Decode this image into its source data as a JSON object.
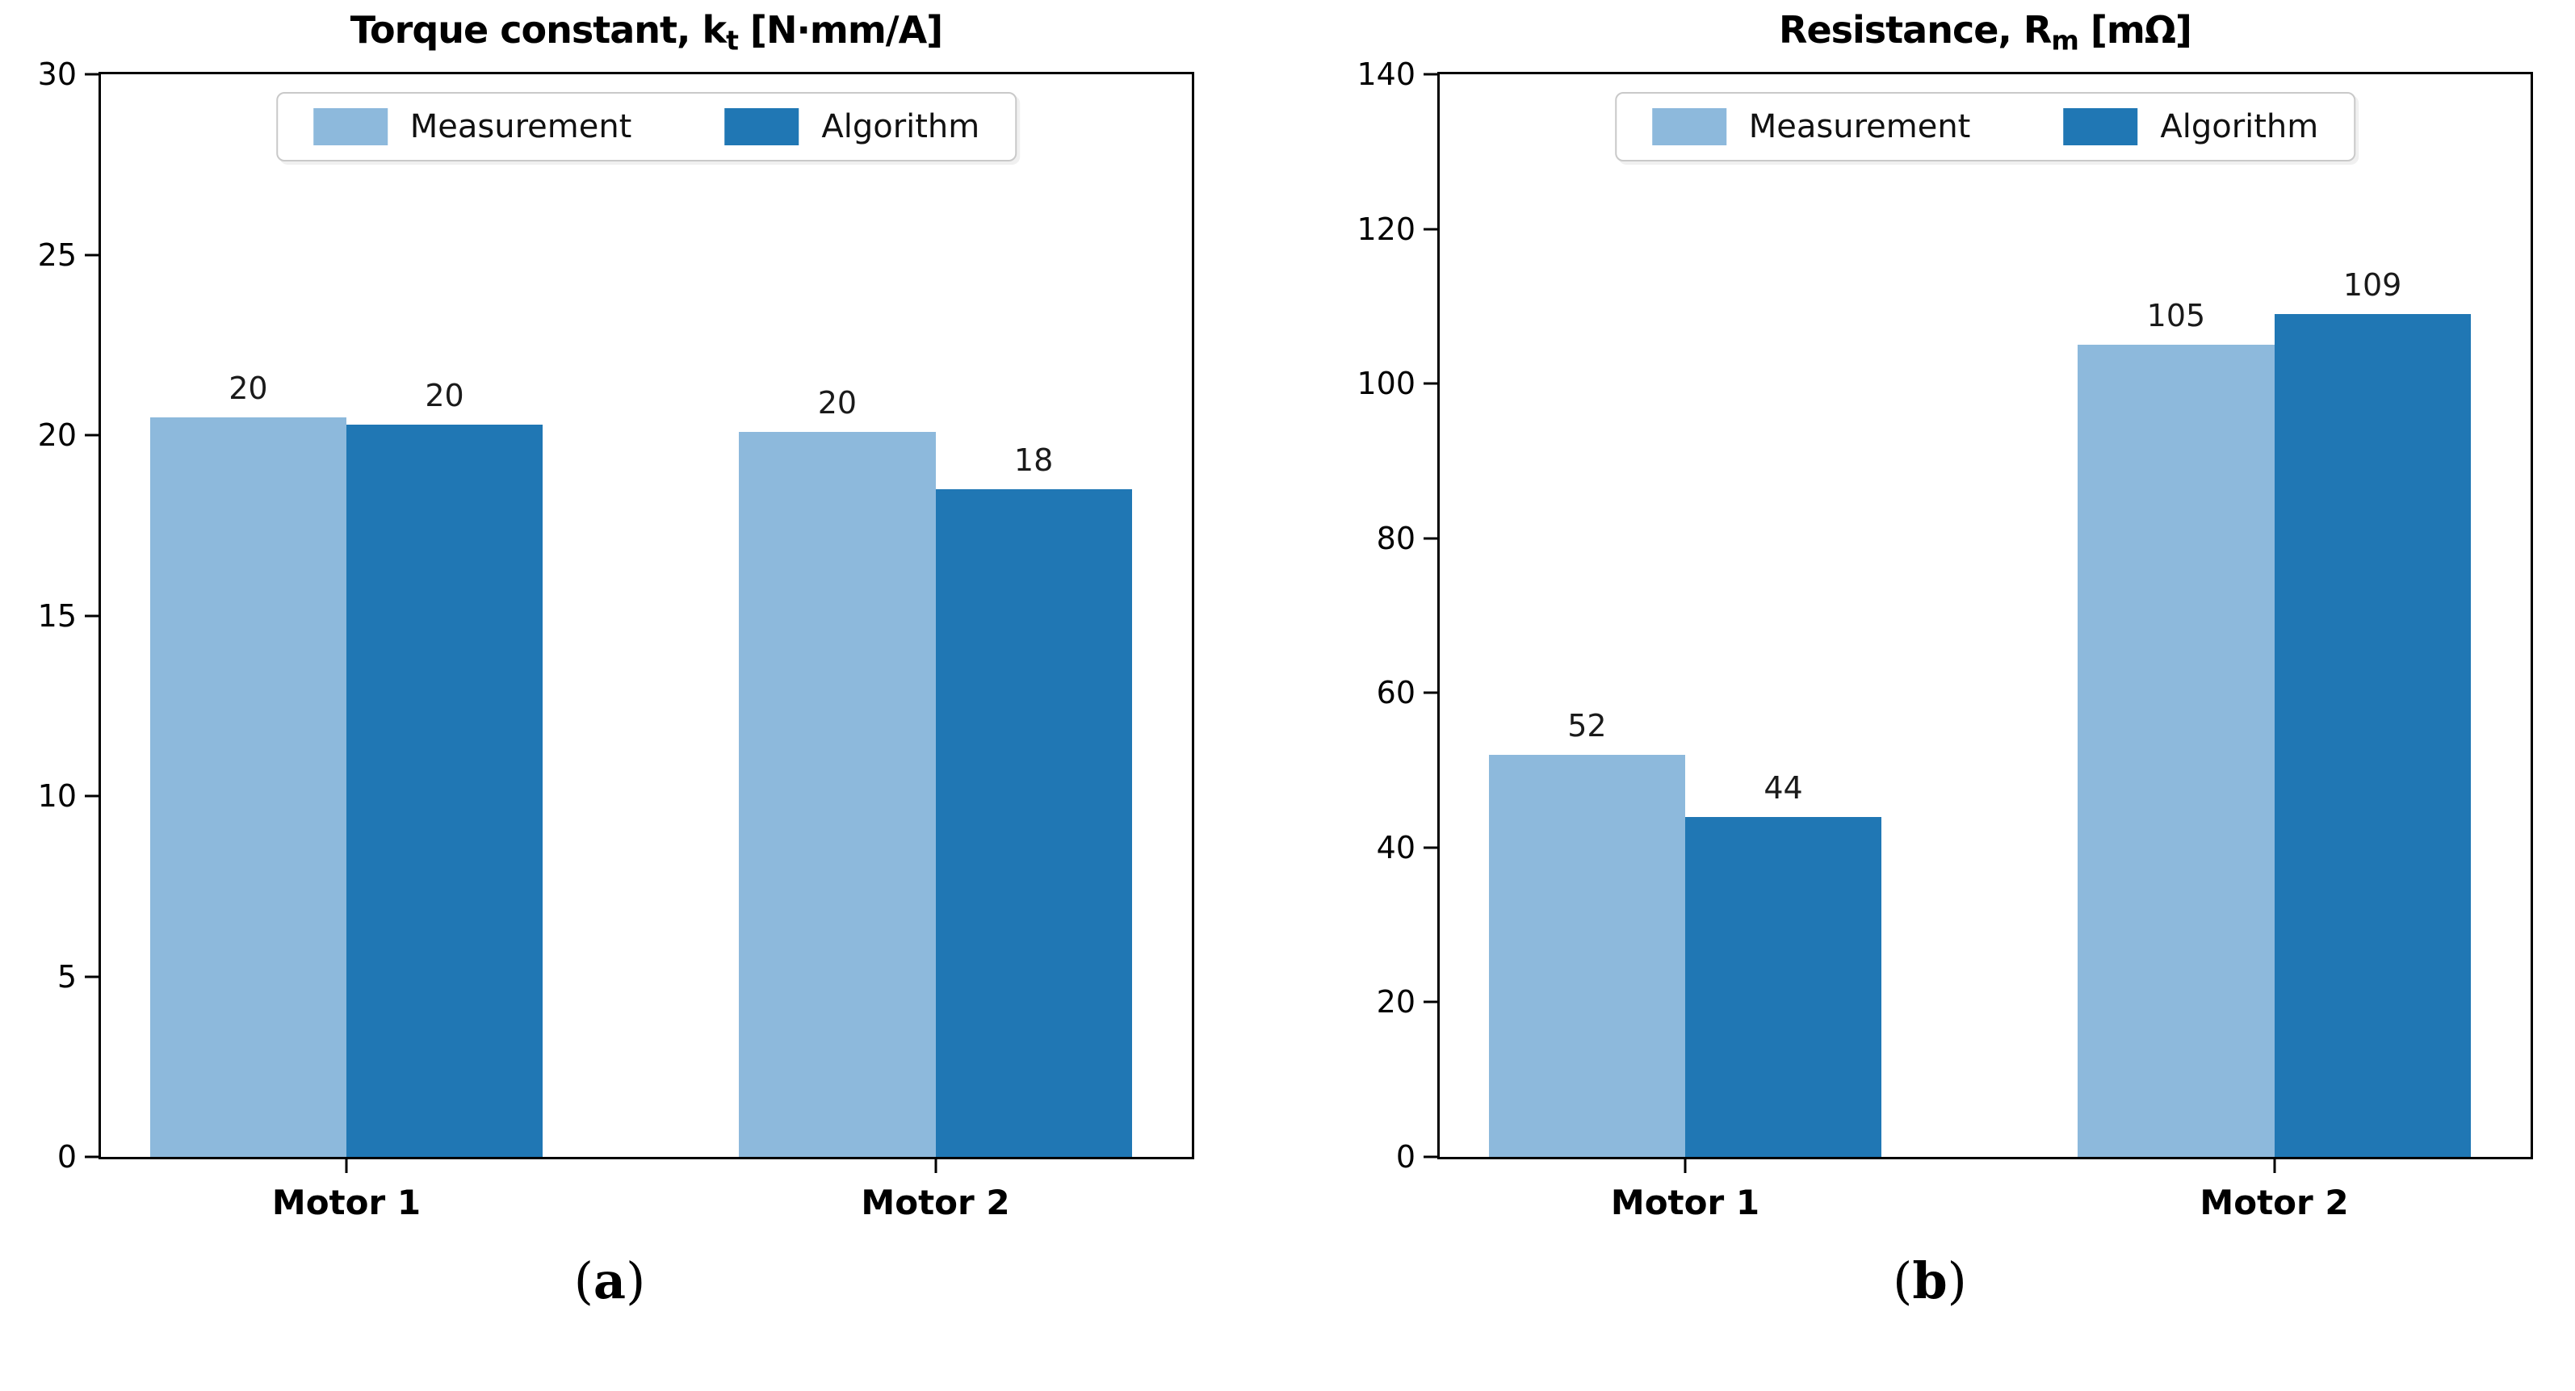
{
  "chart_data": [
    {
      "type": "bar",
      "title": "Torque constant, kt [N·mm/A]",
      "title_parts": {
        "prefix": "Torque constant, k",
        "sub": "t",
        "suffix": " [N·mm/A]"
      },
      "categories": [
        "Motor 1",
        "Motor 2"
      ],
      "series": [
        {
          "name": "Measurement",
          "values": [
            20.5,
            20.1
          ],
          "labels": [
            "20",
            "20"
          ]
        },
        {
          "name": "Algorithm",
          "values": [
            20.3,
            18.5
          ],
          "labels": [
            "20",
            "18"
          ]
        }
      ],
      "ylim": [
        0,
        30
      ],
      "yticks": [
        0,
        5,
        10,
        15,
        20,
        25,
        30
      ],
      "grid": false,
      "legend_position": "upper center",
      "caption": {
        "open": "(",
        "letter": "a",
        "close": ")"
      }
    },
    {
      "type": "bar",
      "title": "Resistance, Rm [mΩ]",
      "title_parts": {
        "prefix": "Resistance, R",
        "sub": "m",
        "suffix": " [mΩ]"
      },
      "categories": [
        "Motor 1",
        "Motor 2"
      ],
      "series": [
        {
          "name": "Measurement",
          "values": [
            52,
            105
          ],
          "labels": [
            "52",
            "105"
          ]
        },
        {
          "name": "Algorithm",
          "values": [
            44,
            109
          ],
          "labels": [
            "44",
            "109"
          ]
        }
      ],
      "ylim": [
        0,
        140
      ],
      "yticks": [
        0,
        20,
        40,
        60,
        80,
        100,
        120,
        140
      ],
      "grid": false,
      "legend_position": "upper center",
      "caption": {
        "open": "(",
        "letter": "b",
        "close": ")"
      }
    }
  ],
  "legend": {
    "items": [
      {
        "label": "Measurement",
        "color": "#8db9dc"
      },
      {
        "label": "Algorithm",
        "color": "#2077b4"
      }
    ]
  },
  "colors": {
    "measurement": "#8db9dc",
    "algorithm": "#2077b4",
    "spine": "#000000",
    "background": "#ffffff"
  }
}
